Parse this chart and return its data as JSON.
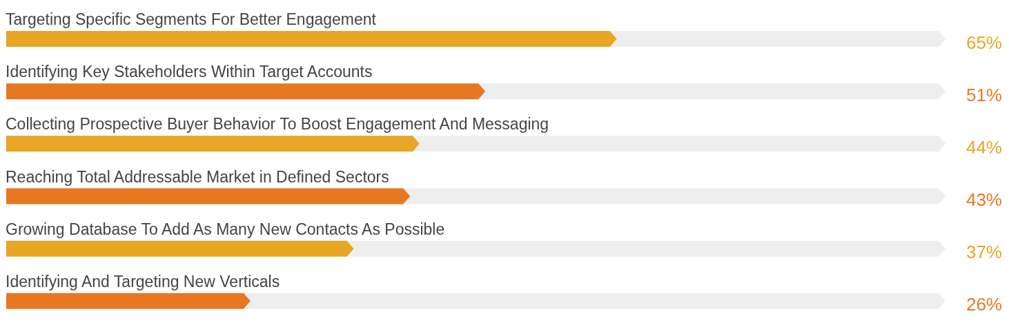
{
  "chart_data": {
    "type": "bar",
    "orientation": "horizontal",
    "tick_labels": "y",
    "categories": [
      "Targeting Specific Segments For Better Engagement",
      "Identifying Key Stakeholders Within Target Accounts",
      "Collecting Prospective Buyer Behavior To Boost Engagement And Messaging",
      "Reaching Total Addressable Market in Defined Sectors",
      "Growing Database To Add As Many New Contacts As Possible",
      "Identifying And Targeting New Verticals"
    ],
    "values": [
      65,
      51,
      44,
      43,
      37,
      26
    ],
    "colors": [
      "#e9a524",
      "#e87722",
      "#e9a524",
      "#e87722",
      "#e9a524",
      "#e87722"
    ],
    "value_labels": [
      "65%",
      "51%",
      "44%",
      "43%",
      "37%",
      "26%"
    ],
    "xlim": [
      0,
      100
    ]
  }
}
